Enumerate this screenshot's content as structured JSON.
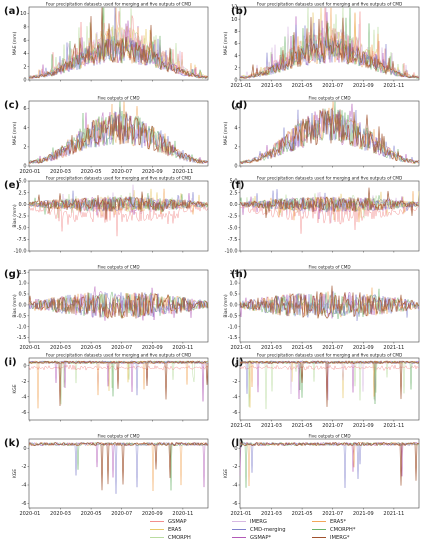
{
  "chart_data": {
    "type": "line",
    "left_x_ticks": [
      "2020-01",
      "2020-03",
      "2020-05",
      "2020-07",
      "2020-09",
      "2020-11"
    ],
    "right_x_ticks": [
      "2021-01",
      "2021-03",
      "2021-05",
      "2021-07",
      "2021-09",
      "2021-11"
    ],
    "panels": [
      {
        "id": "a",
        "title": "Four precipitation datasets used for merging and five outputs of CMD",
        "ylabel": "MAE (mm)",
        "ylim": [
          0,
          11
        ],
        "yticks": [
          0,
          2,
          4,
          6,
          8,
          10
        ],
        "kind": "mae",
        "amp": 4.2,
        "spike": 7,
        "show_x": false,
        "group": "all"
      },
      {
        "id": "b",
        "title": "Four precipitation datasets used for merging and five outputs of CMD",
        "ylabel": "MAE (mm)",
        "ylim": [
          0,
          12
        ],
        "yticks": [
          0,
          2,
          4,
          6,
          8,
          10,
          12
        ],
        "kind": "mae",
        "amp": 4.5,
        "spike": 7.5,
        "show_x": true,
        "group": "all"
      },
      {
        "id": "c",
        "title": "Five outputs of CMD",
        "ylabel": "MAE (mm)",
        "ylim": [
          0,
          6.8
        ],
        "yticks": [
          0,
          2,
          4,
          6
        ],
        "kind": "mae",
        "amp": 3.6,
        "spike": 2.2,
        "show_x": true,
        "group": "cmd"
      },
      {
        "id": "d",
        "title": "Five outputs of CMD",
        "ylabel": "MAE (mm)",
        "ylim": [
          0,
          6.8
        ],
        "yticks": [
          0,
          2,
          4,
          6
        ],
        "kind": "mae",
        "amp": 3.8,
        "spike": 2.5,
        "show_x": false,
        "group": "cmd"
      },
      {
        "id": "e",
        "title": "Four precipitation datasets used for merging and five outputs of CMD",
        "ylabel": "Bias (mm)",
        "ylim": [
          -10,
          5
        ],
        "yticks": [
          -10.0,
          -7.5,
          -5.0,
          -2.5,
          0.0,
          2.5,
          5.0
        ],
        "kind": "bias",
        "amp": 1.2,
        "spike": 6,
        "show_x": false,
        "group": "all"
      },
      {
        "id": "f",
        "title": "Four precipitation datasets used for merging and five outputs of CMD",
        "ylabel": "",
        "ylim": [
          -10,
          5
        ],
        "yticks": [
          -10.0,
          -7.5,
          -5.0,
          -2.5,
          0.0,
          2.5,
          5.0
        ],
        "kind": "bias",
        "amp": 1.2,
        "spike": 6,
        "show_x": false,
        "group": "all"
      },
      {
        "id": "g",
        "title": "Five outputs of CMD",
        "ylabel": "Bias (mm)",
        "ylim": [
          -1.7,
          1.6
        ],
        "yticks": [
          -1.5,
          -1.0,
          -0.5,
          0.0,
          0.5,
          1.0,
          1.5
        ],
        "kind": "bias",
        "amp": 0.45,
        "spike": 0.8,
        "show_x": true,
        "group": "cmd"
      },
      {
        "id": "h",
        "title": "Five outputs of CMD",
        "ylabel": "Bias (mm)",
        "ylim": [
          -1.7,
          1.6
        ],
        "yticks": [
          -1.5,
          -1.0,
          -0.5,
          0.0,
          0.5,
          1.0,
          1.5
        ],
        "kind": "bias",
        "amp": 0.45,
        "spike": 0.8,
        "show_x": true,
        "group": "cmd"
      },
      {
        "id": "i",
        "title": "Four precipitation datasets used for merging and five outputs of CMD",
        "ylabel": "KGE",
        "ylim": [
          -7,
          1
        ],
        "yticks": [
          -6,
          -4,
          -2,
          0
        ],
        "kind": "kge",
        "amp": 0.4,
        "spike": 6,
        "show_x": false,
        "group": "all"
      },
      {
        "id": "j",
        "title": "Four precipitation datasets used for merging and five outputs of CMD",
        "ylabel": "",
        "ylim": [
          -7,
          1
        ],
        "yticks": [
          -6,
          -4,
          -2,
          0
        ],
        "kind": "kge",
        "amp": 0.4,
        "spike": 6,
        "show_x": true,
        "group": "all"
      },
      {
        "id": "k",
        "title": "Five outputs of CMD",
        "ylabel": "KGE",
        "ylim": [
          -6.5,
          1
        ],
        "yticks": [
          -6,
          -4,
          -2,
          0
        ],
        "kind": "kge",
        "amp": 0.3,
        "spike": 5.5,
        "show_x": true,
        "group": "cmd"
      },
      {
        "id": "l",
        "title": "Five outputs of CMD",
        "ylabel": "KGE",
        "ylim": [
          -6.5,
          1
        ],
        "yticks": [
          -6,
          -4,
          -2,
          0
        ],
        "kind": "kge",
        "amp": 0.3,
        "spike": 5.5,
        "show_x": true,
        "group": "cmd"
      }
    ],
    "series": [
      {
        "name": "GSMAP",
        "color": "#f28e8e"
      },
      {
        "name": "ERA5",
        "color": "#e8c96a"
      },
      {
        "name": "CMORPH",
        "color": "#b9dca0"
      },
      {
        "name": "IMERG",
        "color": "#d7b8e2"
      },
      {
        "name": "CMD-merging",
        "color": "#8080cc"
      },
      {
        "name": "GSMAP*",
        "color": "#b35ab8"
      },
      {
        "name": "ERA5*",
        "color": "#f2a65a"
      },
      {
        "name": "CMORPH*",
        "color": "#6ab36a"
      },
      {
        "name": "IMERG*",
        "color": "#a0522d"
      }
    ]
  }
}
